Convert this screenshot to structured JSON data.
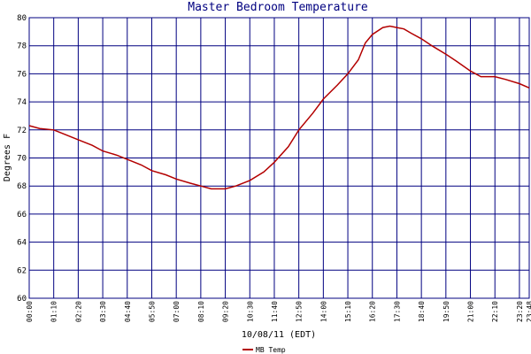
{
  "chart_data": {
    "type": "line",
    "title": "Master Bedroom Temperature",
    "xlabel": "10/08/11 (EDT)",
    "ylabel": "Degrees F",
    "ylim": [
      60,
      80
    ],
    "yticks": [
      "60",
      "62",
      "64",
      "66",
      "68",
      "70",
      "72",
      "74",
      "76",
      "78",
      "80"
    ],
    "xticks": [
      "00:00",
      "01:10",
      "02:20",
      "03:30",
      "04:40",
      "05:50",
      "07:00",
      "08:10",
      "09:20",
      "10:30",
      "11:40",
      "12:50",
      "14:00",
      "15:10",
      "16:20",
      "17:30",
      "18:40",
      "19:50",
      "21:00",
      "22:10",
      "23:20",
      "23:48"
    ],
    "grid": true,
    "legend_position": "bottom-left",
    "colors": {
      "grid": "#000080",
      "line": "#b30000",
      "title": "#000080"
    },
    "series": [
      {
        "name": "MB Temp",
        "x": [
          "00:00",
          "00:30",
          "01:10",
          "01:40",
          "02:20",
          "03:00",
          "03:30",
          "04:10",
          "04:40",
          "05:20",
          "05:50",
          "06:30",
          "07:00",
          "07:40",
          "08:10",
          "08:40",
          "09:20",
          "09:50",
          "10:30",
          "11:10",
          "11:40",
          "12:20",
          "12:50",
          "13:30",
          "14:00",
          "14:40",
          "15:10",
          "15:40",
          "16:00",
          "16:20",
          "16:50",
          "17:10",
          "17:30",
          "17:50",
          "18:10",
          "18:40",
          "19:10",
          "19:50",
          "20:20",
          "21:00",
          "21:30",
          "22:10",
          "22:40",
          "23:20",
          "23:48"
        ],
        "values": [
          72.3,
          72.1,
          72.0,
          71.7,
          71.3,
          70.9,
          70.5,
          70.2,
          69.9,
          69.5,
          69.1,
          68.8,
          68.5,
          68.2,
          68.0,
          67.8,
          67.8,
          68.0,
          68.4,
          69.0,
          69.7,
          70.8,
          72.0,
          73.2,
          74.2,
          75.2,
          76.0,
          77.0,
          78.2,
          78.8,
          79.3,
          79.4,
          79.3,
          79.2,
          78.9,
          78.5,
          78.0,
          77.4,
          76.9,
          76.2,
          75.8,
          75.8,
          75.6,
          75.3,
          75.0
        ]
      }
    ]
  }
}
